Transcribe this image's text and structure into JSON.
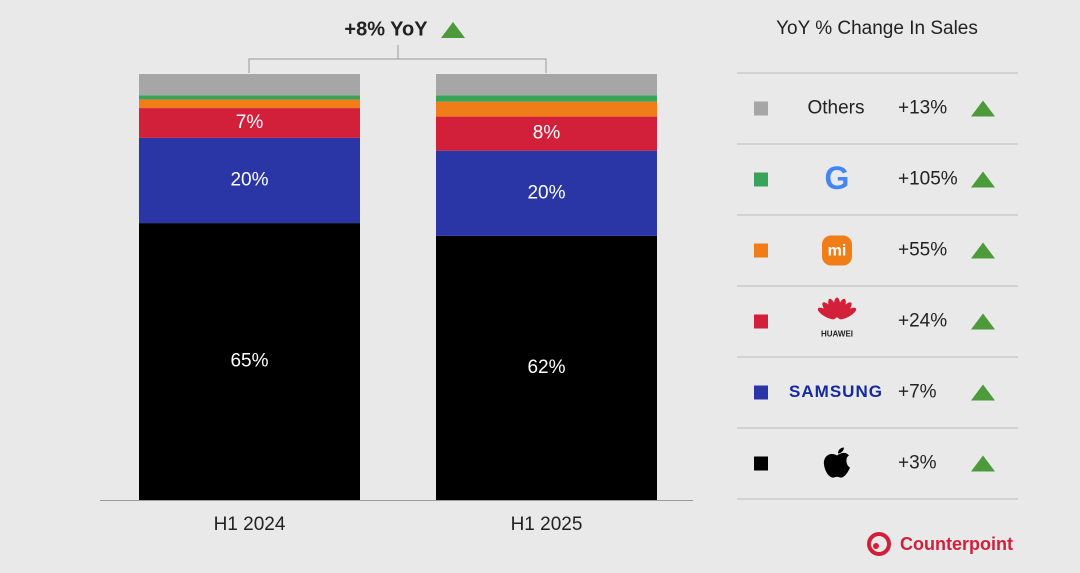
{
  "chart_data": {
    "type": "stacked_bar",
    "annotation": "+8% YoY",
    "legend_title": "YoY % Change In Sales",
    "brand": "Counterpoint",
    "categories": [
      "H1 2024",
      "H1 2025"
    ],
    "ylim": [
      0,
      100
    ],
    "series": [
      {
        "name": "Others",
        "color": "#a6a6a6",
        "values": [
          5,
          5
        ],
        "change": "+13%"
      },
      {
        "name": "G",
        "color": "#3aa35a",
        "values": [
          1,
          1.5
        ],
        "change": "+105%"
      },
      {
        "name": "mi",
        "color": "#f07d18",
        "values": [
          2,
          3.5
        ],
        "change": "+55%"
      },
      {
        "name": "HUAWEI",
        "color": "#d3203a",
        "values": [
          7,
          8
        ],
        "value_labels": [
          "7%",
          "8%"
        ],
        "change": "+24%"
      },
      {
        "name": "SAMSUNG",
        "color": "#2a36a6",
        "values": [
          20,
          20
        ],
        "value_labels": [
          "20%",
          "20%"
        ],
        "change": "+7%"
      },
      {
        "color": "#000000",
        "values": [
          65,
          62
        ],
        "value_labels": [
          "65%",
          "62%"
        ],
        "change": "+3%"
      }
    ]
  }
}
